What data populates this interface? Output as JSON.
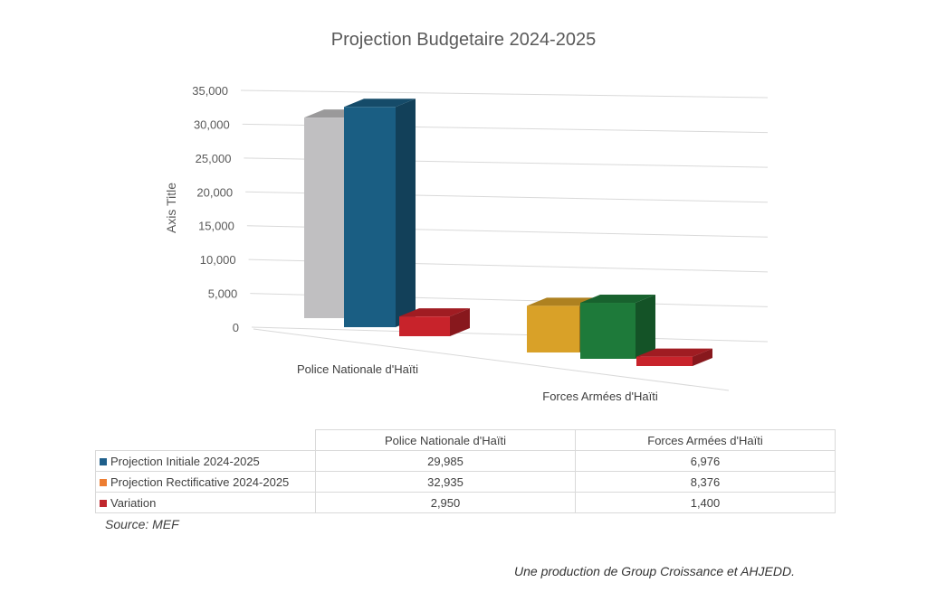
{
  "chart_data": {
    "type": "bar",
    "subtype": "3d-clustered-column",
    "title": "Projection Budgetaire 2024-2025",
    "ylabel": "Axis Title",
    "ylim": [
      0,
      35000
    ],
    "yticks": [
      "0",
      "5,000",
      "10,000",
      "15,000",
      "20,000",
      "25,000",
      "30,000",
      "35,000"
    ],
    "grid": true,
    "categories": [
      "Police Nationale d'Haïti",
      "Forces Armées d'Haïti"
    ],
    "series": [
      {
        "name": "Projection Initiale 2024-2025",
        "values": [
          29985,
          6976
        ],
        "legend_color": "#1f5f8b",
        "bar_colors": [
          "#c0bfc1",
          "#d9a128"
        ],
        "display": [
          "29,985",
          "6,976"
        ]
      },
      {
        "name": "Projection Rectificative 2024-2025",
        "values": [
          32935,
          8376
        ],
        "legend_color": "#ed7d31",
        "bar_colors": [
          "#1a5e83",
          "#1e7a3a"
        ],
        "display": [
          "32,935",
          "8,376"
        ]
      },
      {
        "name": "Variation",
        "values": [
          2950,
          1400
        ],
        "legend_color": "#c0272d",
        "bar_colors": [
          "#c8232b",
          "#c8232b"
        ],
        "display": [
          "2,950",
          "1,400"
        ]
      }
    ]
  },
  "source": "Source: MEF",
  "credit": "Une production de Group Croissance et AHJEDD."
}
